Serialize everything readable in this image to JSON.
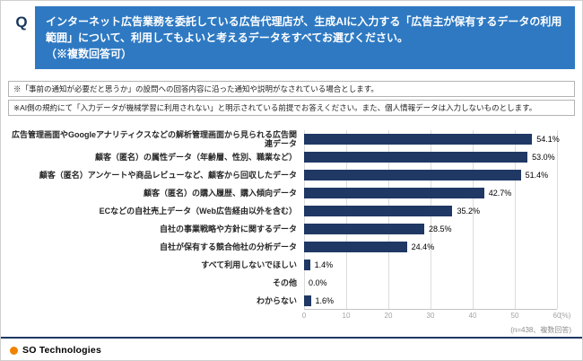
{
  "header": {
    "q_label": "Q",
    "question": "インターネット広告業務を委託している広告代理店が、生成AIに入力する「広告主が保有するデータの利用範囲」について、利用してもよいと考えるデータをすべてお選びください。\n（※複数回答可）"
  },
  "notes": [
    "※「事前の通知が必要だと思うか」の設問への回答内容に沿った通知や説明がなされている場合とします。",
    "※AI側の規約にて「入力データが機械学習に利用されない」と明示されている前提でお答えください。また、個人情報データは入力しないものとします。"
  ],
  "chart_data": {
    "type": "bar",
    "orientation": "horizontal",
    "categories": [
      "広告管理画面やGoogleアナリティクスなどの解析管理画面から見られる広告関連データ",
      "顧客（匿名）の属性データ（年齢層、性別、職業など）",
      "顧客（匿名）アンケートや商品レビューなど、顧客から回収したデータ",
      "顧客（匿名）の購入履歴、購入傾向データ",
      "ECなどの自社売上データ（Web広告経由以外を含む）",
      "自社の事業戦略や方針に関するデータ",
      "自社が保有する競合他社の分析データ",
      "すべて利用しないでほしい",
      "その他",
      "わからない"
    ],
    "values": [
      54.1,
      53.0,
      51.4,
      42.7,
      35.2,
      28.5,
      24.4,
      1.4,
      0.0,
      1.6
    ],
    "value_labels": [
      "54.1%",
      "53.0%",
      "51.4%",
      "42.7%",
      "35.2%",
      "28.5%",
      "24.4%",
      "1.4%",
      "0.0%",
      "1.6%"
    ],
    "xlim": [
      0,
      60
    ],
    "x_ticks": [
      0,
      10,
      20,
      30,
      40,
      50,
      60
    ],
    "x_unit_label": "(%)",
    "bar_color": "#1f3864",
    "grid": true,
    "legend": "none"
  },
  "footer": {
    "brand": "SO Technologies",
    "brand_dot_color": "#f08300",
    "note": "(n=438、複数回答)"
  },
  "colors": {
    "header_blue": "#2e79c2",
    "bar_navy": "#1f3864",
    "divider_navy": "#1f3864"
  }
}
